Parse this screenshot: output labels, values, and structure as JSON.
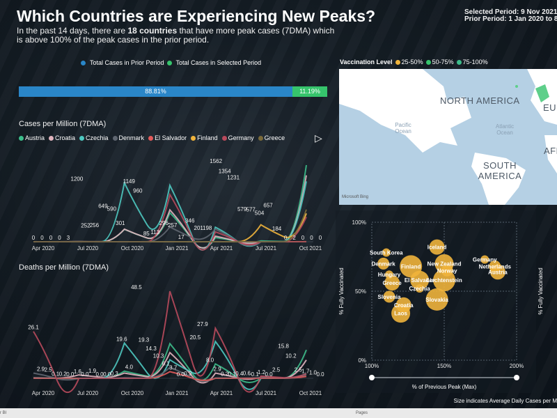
{
  "header": {
    "title": "Which Countries are Experiencing New Peaks?",
    "subtitle_pre": "In the past 14 days, there are ",
    "subtitle_bold": "18 countries",
    "subtitle_post": " that have more peak cases (7DMA) which is above 100% of the peak cases in the prior period.",
    "selected_period": "Selected Period: 9 Nov 2021 -",
    "prior_period": "Prior Period: 1 Jan 2020 to 8 M"
  },
  "period_legend": {
    "prior": "Total Cases in Prior Period",
    "selected": "Total Cases in Selected Period",
    "prior_pct": "88.81%",
    "selected_pct": "11.19%",
    "prior_color": "#2a86c8",
    "selected_color": "#36c46c"
  },
  "cases_chart": {
    "title": "Cases per Million (7DMA)",
    "countries": [
      {
        "name": "Austria",
        "color": "#3dbd8b"
      },
      {
        "name": "Croatia",
        "color": "#e0b4be"
      },
      {
        "name": "Czechia",
        "color": "#4ec8c0"
      },
      {
        "name": "Denmark",
        "color": "#5f6670"
      },
      {
        "name": "El Salvador",
        "color": "#e35a5a"
      },
      {
        "name": "Finland",
        "color": "#f0b43c"
      },
      {
        "name": "Germany",
        "color": "#b84a5c"
      },
      {
        "name": "Greece",
        "color": "#7a6a3a"
      }
    ],
    "next_icon": "play-icon",
    "x_ticks": [
      "Apr 2020",
      "Jul 2020",
      "Oct 2020",
      "Jan 2021",
      "Apr 2021",
      "Jul 2021",
      "Oct 2021"
    ],
    "data_labels": [
      "0",
      "0",
      "0",
      "0",
      "3",
      "1200",
      "252",
      "256",
      "649",
      "590",
      "301",
      "1149",
      "960",
      "85",
      "113",
      "296",
      "257",
      "17",
      "346",
      "201",
      "198",
      "1562",
      "1354",
      "1231",
      "579",
      "577",
      "504",
      "657",
      "184",
      "0",
      "2",
      "0",
      "0",
      "0"
    ]
  },
  "deaths_chart": {
    "title": "Deaths per Million (7DMA)",
    "x_ticks": [
      "Apr 2020",
      "Jul 2020",
      "Oct 2020",
      "Jan 2021",
      "Apr 2021",
      "Jul 2021",
      "Oct 2021"
    ],
    "data_labels": [
      "26.1",
      "2.9",
      "2.5",
      "0.1",
      "0.2",
      "0.0",
      "1.6",
      "0.0",
      "1.9",
      "0.0",
      "0.0",
      "0.3",
      "19.6",
      "4.0",
      "48.5",
      "19.3",
      "14.3",
      "10.3",
      "6.1",
      "3.7",
      "0.0",
      "0.3",
      "20.5",
      "27.9",
      "8.0",
      "2.9",
      "0.2",
      "0.1",
      "0.4",
      "0.6",
      "-0.1",
      "1.2",
      "0.0",
      "2.5",
      "15.8",
      "10.2",
      "2.5",
      "1.7",
      "1.0",
      "0.0"
    ]
  },
  "vaccination": {
    "label": "Vaccination Level",
    "levels": [
      {
        "name": "25-50%",
        "color": "#f0b43c"
      },
      {
        "name": "50-75%",
        "color": "#36c46c"
      },
      {
        "name": "75-100%",
        "color": "#3dbd8b"
      }
    ]
  },
  "map": {
    "labels": {
      "north_america": "NORTH AMERICA",
      "south_america": "SOUTH AMERICA",
      "europe": "EU",
      "africa": "AFR",
      "pacific_ocean": "Pacific Ocean",
      "atlantic_ocean": "Atlantic Ocean",
      "attribution": "Microsoft Bing"
    }
  },
  "scatter": {
    "y_title": "% Fully Vaccinated",
    "x_title": "% of Previous Peak (Max)",
    "y_ticks": [
      "100%",
      "50%",
      "0%"
    ],
    "x_ticks": [
      "100%",
      "150%",
      "200%"
    ],
    "size_note": "Size indicates Average Daily Cases per M",
    "countries": [
      "South Korea",
      "Denmark",
      "Iceland",
      "New Zealand",
      "Finland",
      "Hungary",
      "Norway",
      "Greece",
      "El Salvador",
      "Liechtenstein",
      "Czechia",
      "Slovenia",
      "Croatia",
      "Laos",
      "Slovakia",
      "Germany",
      "Netherlands",
      "Austria"
    ],
    "second_y_title": "% Fully Vaccinated"
  },
  "chart_data": [
    {
      "type": "line",
      "title": "Cases per Million (7DMA)",
      "x": [
        "Apr 2020",
        "Jul 2020",
        "Oct 2020",
        "Jan 2021",
        "Apr 2021",
        "Jul 2021",
        "Oct 2021"
      ],
      "series": [
        {
          "name": "Austria",
          "values": [
            0,
            0,
            252,
            590,
            85,
            17,
            1562
          ]
        },
        {
          "name": "Croatia",
          "values": [
            0,
            3,
            256,
            649,
            113,
            0,
            1354
          ]
        },
        {
          "name": "Czechia",
          "values": [
            0,
            0,
            1200,
            1149,
            296,
            0,
            1231
          ]
        },
        {
          "name": "Denmark",
          "values": [
            0,
            0,
            0,
            301,
            257,
            0,
            579
          ]
        },
        {
          "name": "El Salvador",
          "values": [
            0,
            0,
            0,
            0,
            0,
            0,
            2
          ]
        },
        {
          "name": "Finland",
          "values": [
            0,
            0,
            0,
            0,
            0,
            346,
            577
          ]
        },
        {
          "name": "Germany",
          "values": [
            0,
            0,
            0,
            960,
            201,
            0,
            504
          ]
        },
        {
          "name": "Greece",
          "values": [
            0,
            0,
            0,
            0,
            0,
            0,
            657
          ]
        }
      ]
    },
    {
      "type": "line",
      "title": "Deaths per Million (7DMA)",
      "x": [
        "Apr 2020",
        "Jul 2020",
        "Oct 2020",
        "Jan 2021",
        "Apr 2021",
        "Jul 2021",
        "Oct 2021"
      ],
      "series": [
        {
          "name": "Austria",
          "values": [
            0.1,
            0.0,
            4.0,
            19.3,
            8.0,
            0.1,
            15.8
          ]
        },
        {
          "name": "Croatia",
          "values": [
            0.2,
            1.9,
            2.9,
            14.3,
            2.9,
            0.6,
            10.2
          ]
        },
        {
          "name": "Czechia",
          "values": [
            0.0,
            0.0,
            19.6,
            10.3,
            20.5,
            0.0,
            2.5
          ]
        },
        {
          "name": "Denmark",
          "values": [
            2.9,
            0.0,
            0.3,
            6.1,
            0.2,
            0.4,
            1.7
          ]
        },
        {
          "name": "El Salvador",
          "values": [
            0.0,
            0.0,
            0.0,
            3.7,
            0.0,
            -0.1,
            1.0
          ]
        },
        {
          "name": "Germany",
          "values": [
            26.1,
            0.0,
            0.0,
            48.5,
            27.9,
            1.2,
            2.5
          ]
        }
      ]
    },
    {
      "type": "scatter",
      "title": "",
      "xlabel": "% of Previous Peak (Max)",
      "ylabel": "% Fully Vaccinated",
      "xlim": [
        100,
        200
      ],
      "ylim": [
        0,
        100
      ],
      "points": [
        {
          "label": "South Korea",
          "x": 110,
          "y": 78
        },
        {
          "label": "Denmark",
          "x": 108,
          "y": 70
        },
        {
          "label": "Iceland",
          "x": 145,
          "y": 82
        },
        {
          "label": "New Zealand",
          "x": 150,
          "y": 70
        },
        {
          "label": "Finland",
          "x": 127,
          "y": 68
        },
        {
          "label": "Hungary",
          "x": 112,
          "y": 62
        },
        {
          "label": "Norway",
          "x": 152,
          "y": 65
        },
        {
          "label": "Greece",
          "x": 114,
          "y": 56
        },
        {
          "label": "El Salvador",
          "x": 133,
          "y": 58
        },
        {
          "label": "Liechtenstein",
          "x": 150,
          "y": 58
        },
        {
          "label": "Czechia",
          "x": 133,
          "y": 52
        },
        {
          "label": "Slovenia",
          "x": 112,
          "y": 46
        },
        {
          "label": "Croatia",
          "x": 122,
          "y": 40
        },
        {
          "label": "Laos",
          "x": 120,
          "y": 34
        },
        {
          "label": "Slovakia",
          "x": 145,
          "y": 44
        },
        {
          "label": "Germany",
          "x": 178,
          "y": 73
        },
        {
          "label": "Netherlands",
          "x": 185,
          "y": 68
        },
        {
          "label": "Austria",
          "x": 187,
          "y": 64
        }
      ]
    }
  ],
  "bottom": {
    "left": "r BI",
    "center": "Pages"
  }
}
